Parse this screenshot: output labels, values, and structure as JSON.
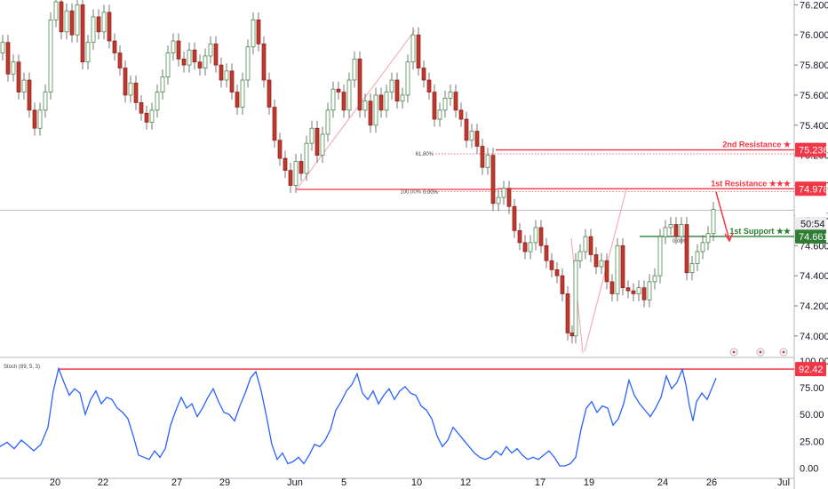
{
  "chart_data": [
    {
      "type": "candlestick",
      "instrument_note": "",
      "x_ticks": [
        "20",
        "22",
        "27",
        "29",
        "Jun",
        "5",
        "10",
        "12",
        "17",
        "19",
        "24",
        "26",
        "Jul"
      ],
      "y_ticks": [
        "76.200",
        "76.000",
        "75.800",
        "75.600",
        "75.400",
        "75.200",
        "75.000",
        "74.800",
        "74.600",
        "74.400",
        "74.200",
        "74.000"
      ],
      "ylim": [
        73.94,
        76.22
      ],
      "price_series": [
        [
          0,
          75.88
        ],
        [
          6,
          75.95
        ],
        [
          12,
          75.74
        ],
        [
          18,
          75.82
        ],
        [
          24,
          75.62
        ],
        [
          30,
          75.7
        ],
        [
          36,
          75.5
        ],
        [
          42,
          75.38
        ],
        [
          48,
          75.5
        ],
        [
          54,
          75.62
        ],
        [
          60,
          76.1
        ],
        [
          66,
          76.22
        ],
        [
          72,
          76.02
        ],
        [
          78,
          76.16
        ],
        [
          84,
          76.0
        ],
        [
          90,
          76.2
        ],
        [
          96,
          75.82
        ],
        [
          102,
          75.95
        ],
        [
          108,
          76.12
        ],
        [
          114,
          76.02
        ],
        [
          120,
          76.15
        ],
        [
          126,
          75.96
        ],
        [
          132,
          75.88
        ],
        [
          138,
          75.78
        ],
        [
          144,
          75.6
        ],
        [
          150,
          75.68
        ],
        [
          156,
          75.55
        ],
        [
          162,
          75.48
        ],
        [
          168,
          75.42
        ],
        [
          174,
          75.5
        ],
        [
          180,
          75.62
        ],
        [
          186,
          75.72
        ],
        [
          192,
          75.88
        ],
        [
          198,
          75.96
        ],
        [
          204,
          75.84
        ],
        [
          210,
          75.8
        ],
        [
          216,
          75.9
        ],
        [
          222,
          75.82
        ],
        [
          228,
          75.78
        ],
        [
          234,
          75.86
        ],
        [
          240,
          75.94
        ],
        [
          246,
          75.8
        ],
        [
          252,
          75.7
        ],
        [
          258,
          75.76
        ],
        [
          264,
          75.62
        ],
        [
          270,
          75.52
        ],
        [
          276,
          75.7
        ],
        [
          282,
          75.92
        ],
        [
          288,
          76.1
        ],
        [
          294,
          75.94
        ],
        [
          300,
          75.7
        ],
        [
          306,
          75.52
        ],
        [
          312,
          75.3
        ],
        [
          318,
          75.18
        ],
        [
          324,
          75.1
        ],
        [
          330,
          75.0
        ],
        [
          336,
          75.16
        ],
        [
          342,
          75.08
        ],
        [
          348,
          75.28
        ],
        [
          354,
          75.38
        ],
        [
          360,
          75.2
        ],
        [
          366,
          75.34
        ],
        [
          372,
          75.5
        ],
        [
          378,
          75.64
        ],
        [
          384,
          75.62
        ],
        [
          390,
          75.5
        ],
        [
          396,
          75.7
        ],
        [
          402,
          75.84
        ],
        [
          408,
          75.5
        ],
        [
          414,
          75.56
        ],
        [
          420,
          75.4
        ],
        [
          426,
          75.6
        ],
        [
          432,
          75.5
        ],
        [
          438,
          75.62
        ],
        [
          444,
          75.7
        ],
        [
          450,
          75.56
        ],
        [
          456,
          75.6
        ],
        [
          462,
          75.82
        ],
        [
          468,
          76.0
        ],
        [
          474,
          75.78
        ],
        [
          480,
          75.7
        ],
        [
          486,
          75.62
        ],
        [
          492,
          75.44
        ],
        [
          498,
          75.5
        ],
        [
          504,
          75.58
        ],
        [
          510,
          75.62
        ],
        [
          516,
          75.5
        ],
        [
          522,
          75.44
        ],
        [
          528,
          75.3
        ],
        [
          534,
          75.36
        ],
        [
          540,
          75.26
        ],
        [
          546,
          75.12
        ],
        [
          552,
          75.2
        ],
        [
          558,
          74.88
        ],
        [
          564,
          74.92
        ],
        [
          570,
          74.98
        ],
        [
          576,
          74.86
        ],
        [
          582,
          74.7
        ],
        [
          588,
          74.62
        ],
        [
          594,
          74.56
        ],
        [
          600,
          74.62
        ],
        [
          606,
          74.72
        ],
        [
          612,
          74.6
        ],
        [
          618,
          74.5
        ],
        [
          624,
          74.44
        ],
        [
          630,
          74.4
        ],
        [
          636,
          74.28
        ],
        [
          642,
          74.02
        ],
        [
          646,
          74.0
        ],
        [
          650,
          74.5
        ],
        [
          656,
          74.56
        ],
        [
          662,
          74.66
        ],
        [
          668,
          74.54
        ],
        [
          674,
          74.46
        ],
        [
          680,
          74.5
        ],
        [
          686,
          74.36
        ],
        [
          692,
          74.28
        ],
        [
          698,
          74.6
        ],
        [
          704,
          74.32
        ],
        [
          710,
          74.3
        ],
        [
          716,
          74.28
        ],
        [
          722,
          74.32
        ],
        [
          728,
          74.24
        ],
        [
          734,
          74.36
        ],
        [
          740,
          74.4
        ],
        [
          746,
          74.66
        ],
        [
          752,
          74.72
        ],
        [
          758,
          74.74
        ],
        [
          764,
          74.66
        ],
        [
          770,
          74.74
        ],
        [
          776,
          74.42
        ],
        [
          782,
          74.48
        ],
        [
          788,
          74.56
        ],
        [
          794,
          74.62
        ],
        [
          800,
          74.68
        ],
        [
          806,
          74.84
        ]
      ],
      "levels": [
        {
          "label": "2nd Resistance ★",
          "value": "75.236",
          "price": 75.236,
          "color": "#f23645"
        },
        {
          "label": "1st Resistance ★★★",
          "value": "74.978",
          "price": 74.978,
          "color": "#f23645"
        },
        {
          "label": "1st Support ★★",
          "value": "74.661",
          "price": 74.661,
          "color": "#2e7d32"
        }
      ],
      "current_price": {
        "value": "74.836",
        "price": 74.836,
        "countdown": "50:54"
      },
      "fib_labels": [
        {
          "text": "61.80%",
          "price": 75.21
        },
        {
          "text": "100.00%",
          "price": 74.96
        }
      ],
      "fib_small_labels": [
        "0.00%",
        "0.00%"
      ]
    },
    {
      "type": "line",
      "title": "Stoch (89, 5, 3)",
      "y_ticks": [
        "100.00",
        "75.00",
        "50.00",
        "25.00",
        "0.00"
      ],
      "ylim": [
        -8,
        100
      ],
      "level": {
        "value": "92.42",
        "price": 92.42,
        "color": "#f23645"
      },
      "series": [
        {
          "values": [
            [
              0,
              20
            ],
            [
              8,
              24
            ],
            [
              16,
              18
            ],
            [
              24,
              26
            ],
            [
              30,
              22
            ],
            [
              38,
              16
            ],
            [
              46,
              22
            ],
            [
              54,
              38
            ],
            [
              60,
              72
            ],
            [
              66,
              93
            ],
            [
              72,
              80
            ],
            [
              78,
              68
            ],
            [
              84,
              74
            ],
            [
              90,
              70
            ],
            [
              96,
              50
            ],
            [
              102,
              64
            ],
            [
              108,
              72
            ],
            [
              114,
              60
            ],
            [
              120,
              66
            ],
            [
              126,
              64
            ],
            [
              132,
              56
            ],
            [
              138,
              52
            ],
            [
              144,
              46
            ],
            [
              150,
              30
            ],
            [
              156,
              12
            ],
            [
              162,
              10
            ],
            [
              168,
              8
            ],
            [
              174,
              16
            ],
            [
              180,
              10
            ],
            [
              186,
              18
            ],
            [
              192,
              40
            ],
            [
              198,
              54
            ],
            [
              204,
              66
            ],
            [
              210,
              56
            ],
            [
              216,
              60
            ],
            [
              222,
              48
            ],
            [
              228,
              56
            ],
            [
              234,
              66
            ],
            [
              240,
              74
            ],
            [
              246,
              62
            ],
            [
              252,
              52
            ],
            [
              258,
              50
            ],
            [
              264,
              44
            ],
            [
              270,
              58
            ],
            [
              276,
              70
            ],
            [
              282,
              84
            ],
            [
              288,
              90
            ],
            [
              294,
              72
            ],
            [
              300,
              48
            ],
            [
              306,
              22
            ],
            [
              312,
              8
            ],
            [
              318,
              14
            ],
            [
              324,
              4
            ],
            [
              330,
              6
            ],
            [
              336,
              10
            ],
            [
              342,
              4
            ],
            [
              348,
              12
            ],
            [
              354,
              22
            ],
            [
              360,
              20
            ],
            [
              366,
              26
            ],
            [
              372,
              36
            ],
            [
              378,
              54
            ],
            [
              384,
              62
            ],
            [
              390,
              72
            ],
            [
              396,
              78
            ],
            [
              402,
              88
            ],
            [
              408,
              70
            ],
            [
              414,
              64
            ],
            [
              420,
              72
            ],
            [
              426,
              60
            ],
            [
              432,
              68
            ],
            [
              438,
              74
            ],
            [
              444,
              64
            ],
            [
              450,
              72
            ],
            [
              456,
              76
            ],
            [
              462,
              70
            ],
            [
              468,
              68
            ],
            [
              474,
              58
            ],
            [
              480,
              54
            ],
            [
              486,
              46
            ],
            [
              492,
              30
            ],
            [
              498,
              20
            ],
            [
              504,
              26
            ],
            [
              510,
              38
            ],
            [
              516,
              32
            ],
            [
              522,
              26
            ],
            [
              528,
              20
            ],
            [
              534,
              14
            ],
            [
              540,
              10
            ],
            [
              546,
              8
            ],
            [
              552,
              10
            ],
            [
              558,
              16
            ],
            [
              564,
              12
            ],
            [
              570,
              20
            ],
            [
              576,
              14
            ],
            [
              582,
              18
            ],
            [
              588,
              12
            ],
            [
              594,
              8
            ],
            [
              600,
              10
            ],
            [
              606,
              8
            ],
            [
              612,
              12
            ],
            [
              618,
              16
            ],
            [
              624,
              10
            ],
            [
              630,
              2
            ],
            [
              636,
              2
            ],
            [
              642,
              4
            ],
            [
              648,
              10
            ],
            [
              654,
              36
            ],
            [
              660,
              56
            ],
            [
              666,
              62
            ],
            [
              672,
              52
            ],
            [
              678,
              58
            ],
            [
              684,
              56
            ],
            [
              690,
              40
            ],
            [
              696,
              46
            ],
            [
              702,
              60
            ],
            [
              708,
              82
            ],
            [
              714,
              68
            ],
            [
              720,
              60
            ],
            [
              726,
              54
            ],
            [
              732,
              48
            ],
            [
              738,
              56
            ],
            [
              744,
              66
            ],
            [
              750,
              86
            ],
            [
              756,
              74
            ],
            [
              762,
              80
            ],
            [
              768,
              92
            ],
            [
              772,
              78
            ],
            [
              776,
              58
            ],
            [
              780,
              44
            ],
            [
              784,
              62
            ],
            [
              790,
              70
            ],
            [
              796,
              64
            ],
            [
              802,
              76
            ],
            [
              806,
              84
            ]
          ]
        }
      ]
    }
  ],
  "markers": {
    "up_arrow": "↗",
    "down_arrow": "↘",
    "event_icons": [
      "flag-icon",
      "flag-icon",
      "flag-icon"
    ]
  }
}
